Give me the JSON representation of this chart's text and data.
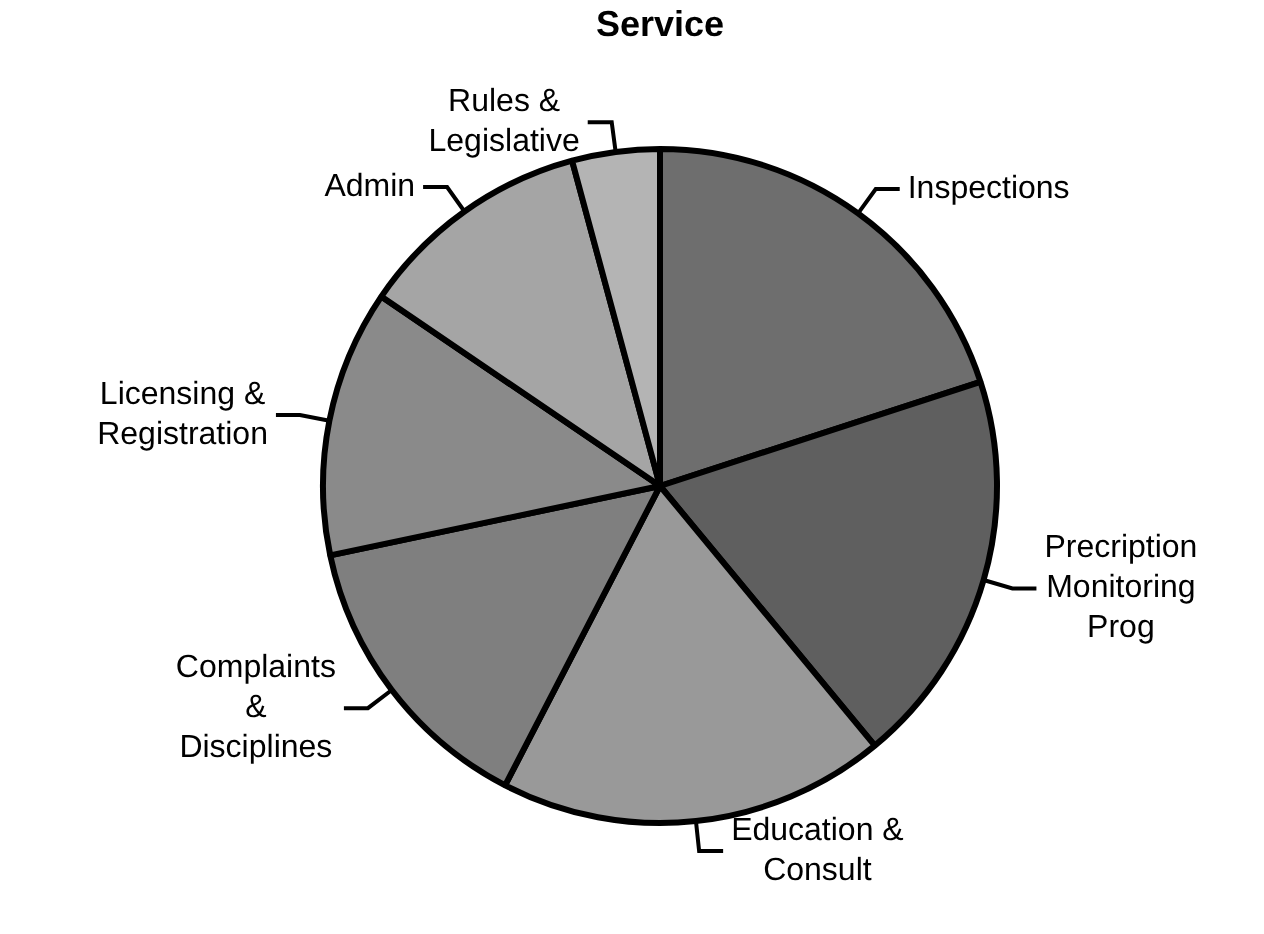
{
  "chart_data": {
    "type": "pie",
    "title": "Service",
    "categories": [
      "Inspections",
      "Precription Monitoring Prog",
      "Education & Consult",
      "Complaints & Disciplines",
      "Licensing & Registration",
      "Admin",
      "Rules & Legislative"
    ],
    "values": [
      20,
      19,
      18.6,
      14.1,
      12.8,
      11.3,
      4.2
    ],
    "colors": [
      "#6e6e6e",
      "#5f5f5f",
      "#999999",
      "#7f7f7f",
      "#8a8a8a",
      "#a5a5a5",
      "#b4b4b4"
    ],
    "legend": false
  }
}
